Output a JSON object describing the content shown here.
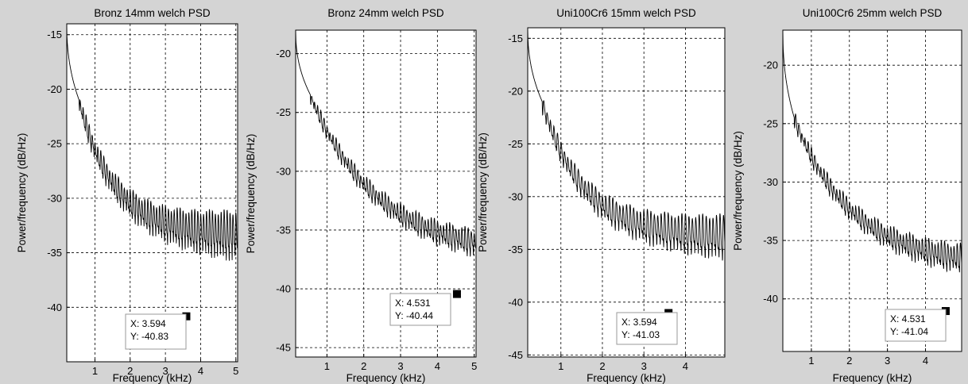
{
  "colors": {
    "figure_bg": "#d4d4d4",
    "axes_bg": "#ffffff",
    "line": "#000000",
    "grid": "#000000",
    "datatip_bg": "#ffffff",
    "datatip_border": "#9a9a9a",
    "marker": "#000000"
  },
  "chart_data": [
    {
      "type": "line",
      "title": "Bronz 14mm welch PSD",
      "xlabel": "Frequency (kHz)",
      "ylabel": "Power/frequency (dB/Hz)",
      "xlim": [
        0.2,
        5.05
      ],
      "ylim": [
        -45,
        -14
      ],
      "xticks": [
        1,
        2,
        3,
        4,
        5
      ],
      "yticks": [
        -40,
        -35,
        -30,
        -25,
        -20,
        -15
      ],
      "grid": true,
      "trend": {
        "start": -14,
        "level1": -21,
        "floor": -33,
        "decay": 1.0,
        "amp_start": 1.5,
        "amp_end": 4.6,
        "freq": 12
      },
      "datatip": {
        "x": 3.594,
        "y": -40.83,
        "x_label": "X: 3.594",
        "y_label": "Y: -40.83"
      }
    },
    {
      "type": "line",
      "title": "Bronz 24mm welch PSD",
      "xlabel": "Frequency (kHz)",
      "ylabel": "Power/frequency (dB/Hz)",
      "xlim": [
        0.15,
        5.05
      ],
      "ylim": [
        -45.8,
        -18
      ],
      "xticks": [
        1,
        2,
        3,
        4,
        5
      ],
      "yticks": [
        -45,
        -40,
        -35,
        -30,
        -25,
        -20
      ],
      "grid": true,
      "trend": {
        "start": -18,
        "level1": -23.5,
        "floor": -37,
        "decay": 0.55,
        "amp_start": 1.0,
        "amp_end": 2.2,
        "freq": 12
      },
      "datatip": {
        "x": 4.531,
        "y": -40.44,
        "x_label": "X: 4.531",
        "y_label": "Y: -40.44"
      }
    },
    {
      "type": "line",
      "title": "Uni100Cr6 15mm welch PSD",
      "xlabel": "Frequency (kHz)",
      "ylabel": "Power/frequency (dB/Hz)",
      "xlim": [
        0.2,
        4.95
      ],
      "ylim": [
        -45.2,
        -14
      ],
      "xticks": [
        1,
        2,
        3,
        4
      ],
      "yticks": [
        -45,
        -40,
        -35,
        -30,
        -25,
        -20,
        -15
      ],
      "grid": true,
      "trend": {
        "start": -14,
        "level1": -21,
        "floor": -33.5,
        "decay": 1.0,
        "amp_start": 1.5,
        "amp_end": 4.3,
        "freq": 12
      },
      "datatip": {
        "x": 3.594,
        "y": -41.03,
        "x_label": "X: 3.594",
        "y_label": "Y: -41.03"
      }
    },
    {
      "type": "line",
      "title": "Uni100Cr6 25mm welch PSD",
      "xlabel": "Frequency (kHz)",
      "ylabel": "Power/frequency (dB/Hz)",
      "xlim": [
        0.25,
        4.95
      ],
      "ylim": [
        -44.5,
        -17
      ],
      "xticks": [
        1,
        2,
        3,
        4
      ],
      "yticks": [
        -40,
        -35,
        -30,
        -25,
        -20
      ],
      "grid": true,
      "trend": {
        "start": -17,
        "level1": -24.5,
        "floor": -37,
        "decay": 0.65,
        "amp_start": 1.1,
        "amp_end": 2.4,
        "freq": 12
      },
      "datatip": {
        "x": 4.531,
        "y": -41.04,
        "x_label": "X: 4.531",
        "y_label": "Y: -41.04"
      }
    }
  ]
}
